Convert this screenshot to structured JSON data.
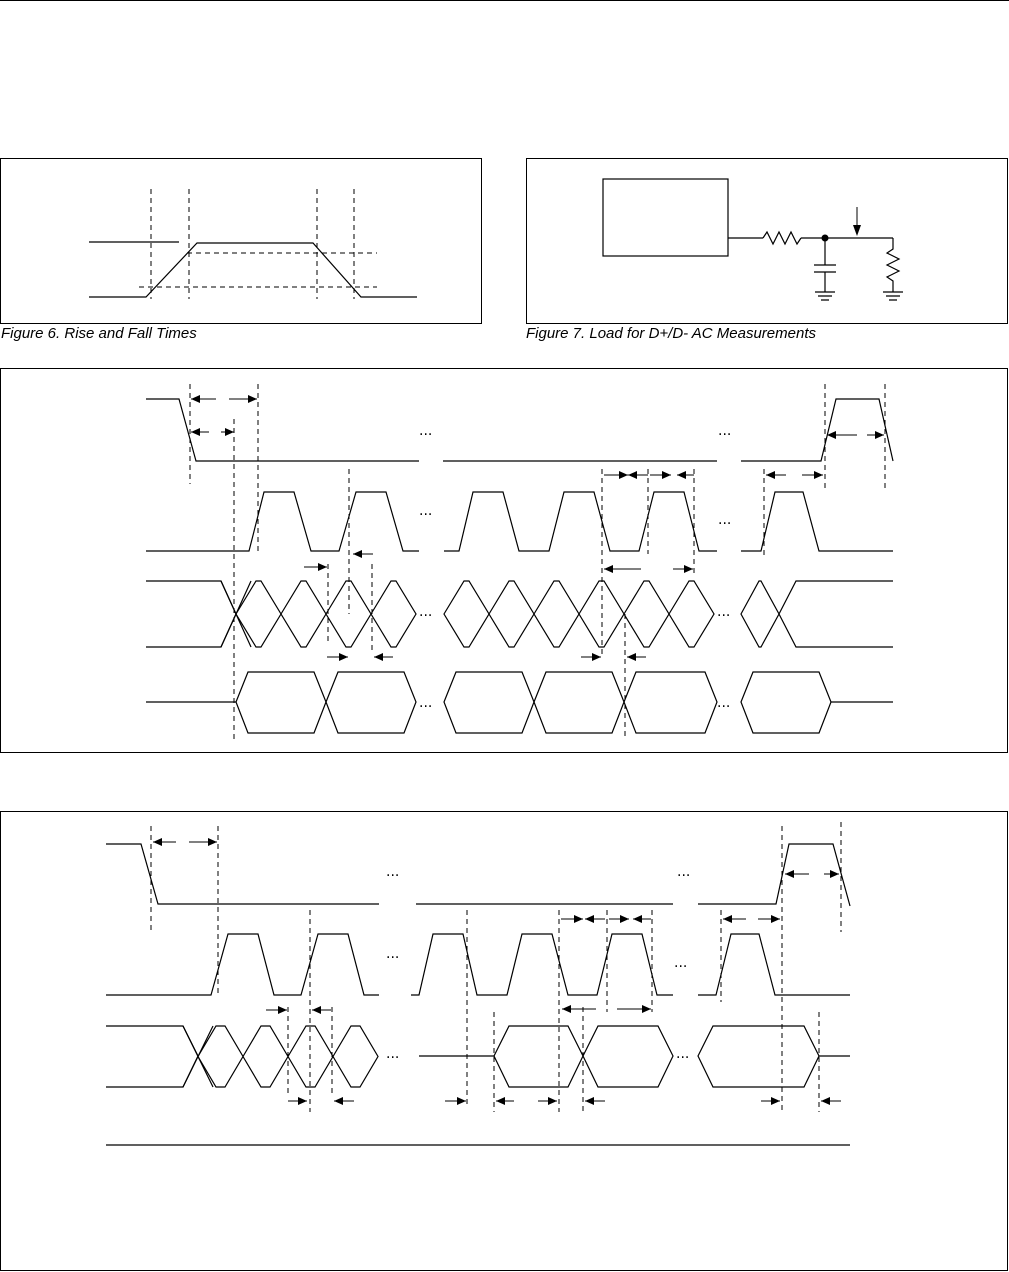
{
  "figure6": {
    "caption": "Figure 6. Rise and Fall Times"
  },
  "figure7": {
    "caption": "Figure 7. Load for D+/D- AC Measurements"
  },
  "ellipsis": "..."
}
